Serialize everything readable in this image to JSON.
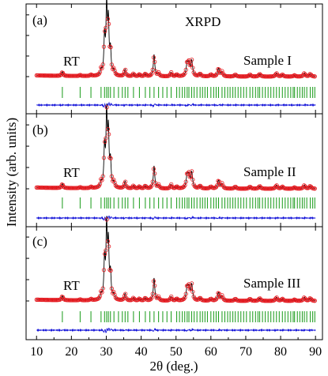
{
  "chart_data": {
    "type": "line",
    "figure_title": "XRPD",
    "xlabel": "2θ (deg.)",
    "ylabel": "Intensity (arb. units)",
    "xlim": [
      7,
      92
    ],
    "xticks": [
      10,
      20,
      30,
      40,
      50,
      60,
      70,
      80,
      90
    ],
    "xtick_labels": [
      "10",
      "20",
      "30",
      "40",
      "50",
      "60",
      "70",
      "80",
      "90"
    ],
    "colors": {
      "observed": "#e4161c",
      "calculated": "#000000",
      "bragg": "#169a16",
      "difference": "#1010d8"
    },
    "peaks": [
      {
        "x": 17.4,
        "h": 0.06,
        "w": 0.25
      },
      {
        "x": 22.5,
        "h": 0.015,
        "w": 0.25
      },
      {
        "x": 25.6,
        "h": 0.02,
        "w": 0.25
      },
      {
        "x": 28.5,
        "h": 0.08,
        "w": 0.22
      },
      {
        "x": 29.5,
        "h": 0.55,
        "w": 0.22
      },
      {
        "x": 30.1,
        "h": 1.0,
        "w": 0.22
      },
      {
        "x": 30.6,
        "h": 0.75,
        "w": 0.22
      },
      {
        "x": 31.2,
        "h": 0.35,
        "w": 0.22
      },
      {
        "x": 32.2,
        "h": 0.08,
        "w": 0.25
      },
      {
        "x": 35.4,
        "h": 0.1,
        "w": 0.25
      },
      {
        "x": 37.8,
        "h": 0.04,
        "w": 0.25
      },
      {
        "x": 39.5,
        "h": 0.03,
        "w": 0.25
      },
      {
        "x": 41.2,
        "h": 0.04,
        "w": 0.25
      },
      {
        "x": 43.7,
        "h": 0.32,
        "w": 0.25
      },
      {
        "x": 45.0,
        "h": 0.05,
        "w": 0.25
      },
      {
        "x": 48.6,
        "h": 0.06,
        "w": 0.25
      },
      {
        "x": 50.2,
        "h": 0.03,
        "w": 0.25
      },
      {
        "x": 53.2,
        "h": 0.18,
        "w": 0.3
      },
      {
        "x": 53.7,
        "h": 0.16,
        "w": 0.3
      },
      {
        "x": 54.5,
        "h": 0.22,
        "w": 0.3
      },
      {
        "x": 56.9,
        "h": 0.04,
        "w": 0.3
      },
      {
        "x": 60.0,
        "h": 0.03,
        "w": 0.3
      },
      {
        "x": 62.2,
        "h": 0.12,
        "w": 0.3
      },
      {
        "x": 63.2,
        "h": 0.07,
        "w": 0.3
      },
      {
        "x": 67.0,
        "h": 0.03,
        "w": 0.3
      },
      {
        "x": 71.2,
        "h": 0.03,
        "w": 0.3
      },
      {
        "x": 74.0,
        "h": 0.04,
        "w": 0.3
      },
      {
        "x": 78.8,
        "h": 0.05,
        "w": 0.3
      },
      {
        "x": 80.5,
        "h": 0.03,
        "w": 0.3
      },
      {
        "x": 84.0,
        "h": 0.02,
        "w": 0.3
      },
      {
        "x": 86.8,
        "h": 0.05,
        "w": 0.3
      },
      {
        "x": 88.5,
        "h": 0.04,
        "w": 0.3
      }
    ],
    "bragg_positions": [
      17.4,
      22.5,
      25.6,
      28.5,
      29.5,
      30.1,
      30.6,
      31.2,
      32.2,
      33.5,
      34.6,
      35.4,
      36.2,
      37.8,
      39.5,
      41.2,
      42.5,
      43.7,
      45.0,
      46.2,
      47.4,
      48.6,
      50.2,
      51.0,
      51.8,
      52.5,
      53.2,
      53.7,
      54.5,
      55.2,
      56.0,
      56.9,
      57.6,
      58.3,
      59.0,
      60.0,
      60.8,
      61.5,
      62.2,
      63.2,
      64.0,
      64.8,
      65.5,
      66.3,
      67.0,
      67.8,
      68.6,
      69.4,
      70.2,
      71.2,
      72.0,
      72.8,
      73.5,
      74.0,
      74.8,
      75.6,
      76.4,
      77.2,
      78.0,
      78.8,
      79.6,
      80.5,
      81.3,
      82.1,
      82.9,
      83.6,
      84.0,
      84.8,
      85.5,
      86.2,
      86.8,
      87.5,
      88.5,
      89.2,
      89.8
    ],
    "panels": [
      {
        "label": "(a)",
        "temperature": "RT",
        "sample": "Sample I"
      },
      {
        "label": "(b)",
        "temperature": "RT",
        "sample": "Sample II"
      },
      {
        "label": "(c)",
        "temperature": "RT",
        "sample": "Sample III"
      }
    ]
  }
}
